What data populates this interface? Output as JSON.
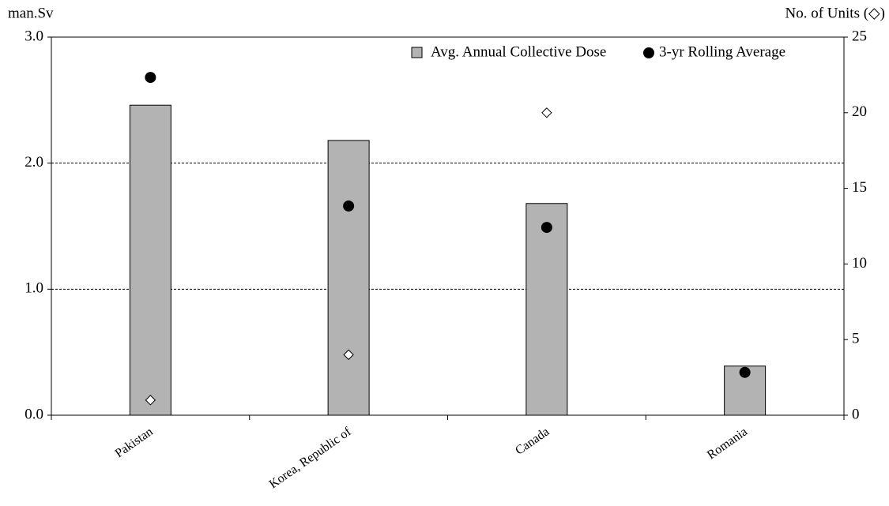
{
  "chart_data": {
    "type": "bar",
    "y_label": "man.Sv",
    "y2_label": "No. of Units (◇)",
    "categories": [
      "Pakistan",
      "Korea, Republic of",
      "Canada",
      "Romania"
    ],
    "series": [
      {
        "name": "Avg. Annual Collective Dose",
        "type": "bar",
        "color": "#b3b3b3",
        "values": [
          2.46,
          2.18,
          1.68,
          0.39
        ]
      },
      {
        "name": "3-yr Rolling Average",
        "type": "dot",
        "color": "#000000",
        "values": [
          2.68,
          1.66,
          1.49,
          0.34
        ]
      },
      {
        "type": "diamond",
        "color": "#ffffff",
        "axis": "y2",
        "values": [
          1,
          4,
          20,
          null
        ]
      }
    ],
    "ylim": [
      0,
      3
    ],
    "yticks": [
      {
        "value": 0,
        "label": "0.0"
      },
      {
        "value": 1,
        "label": "1.0"
      },
      {
        "value": 2,
        "label": "2.0"
      },
      {
        "value": 3,
        "label": "3.0"
      }
    ],
    "y2lim": [
      0,
      25
    ],
    "y2ticks": [
      0,
      5,
      10,
      15,
      20,
      25
    ],
    "grid": true,
    "legend": "top-right"
  }
}
